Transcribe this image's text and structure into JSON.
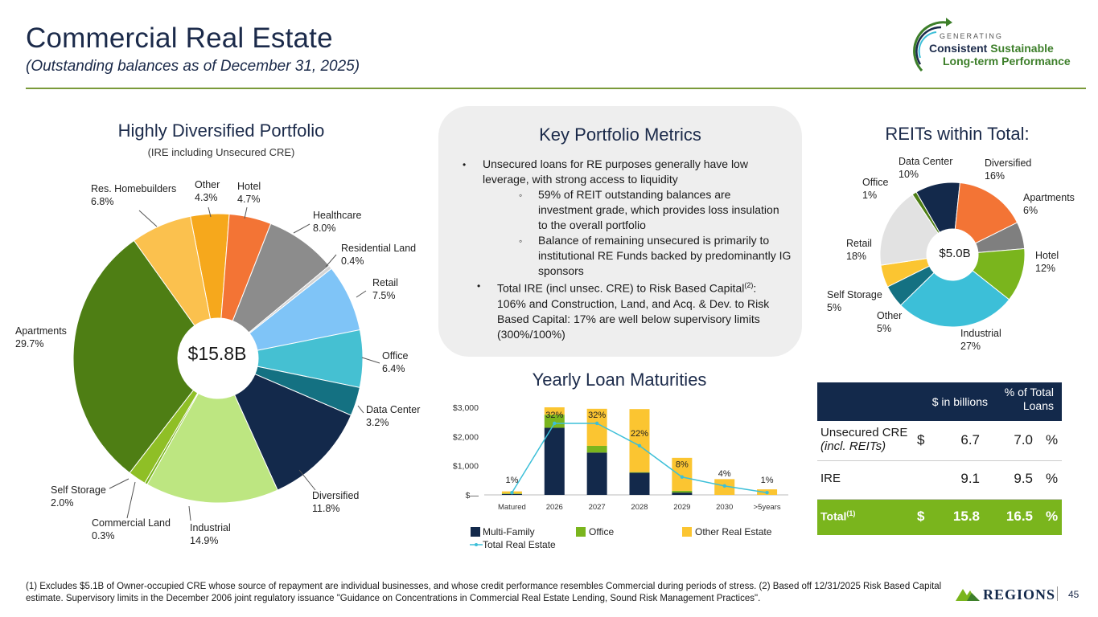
{
  "header": {
    "title": "Commercial Real Estate",
    "subtitle": "(Outstanding balances as of December 31, 2025)"
  },
  "logo": {
    "line1": "GENERATING",
    "line2a": "Consistent",
    "line2b": "Sustainable",
    "line3": "Long-term Performance"
  },
  "portfolio": {
    "title": "Highly Diversified Portfolio",
    "subtitle": "(IRE including Unsecured CRE)",
    "center": "$15.8B"
  },
  "reits": {
    "title": "REITs within Total:",
    "center": "$5.0B"
  },
  "metrics": {
    "title": "Key Portfolio Metrics",
    "b1": "Unsecured loans for RE purposes generally have low leverage, with strong access to liquidity",
    "b1a": "59% of REIT outstanding balances are investment grade, which provides loss insulation to the overall portfolio",
    "b1b": "Balance of remaining unsecured is primarily to institutional RE Funds backed by predominantly IG sponsors",
    "b2_pre": "Total IRE (incl unsec. CRE) to Risk Based Capital",
    "b2_sup": "(2)",
    "b2_post": ": 106% and Construction, Land, and Acq. & Dev. to Risk Based Capital: 17% are well below supervisory limits (300%/100%)"
  },
  "maturities": {
    "title": "Yearly Loan Maturities",
    "legend": {
      "mf": "Multi-Family",
      "office": "Office",
      "ore": "Other Real Estate",
      "total": "Total Real Estate"
    }
  },
  "table": {
    "col1": "$ in billions",
    "col2": "% of Total Loans",
    "rows": [
      {
        "name": "Unsecured CRE",
        "name2": "(incl. REITs)",
        "dollar": "$",
        "val": "6.7",
        "pct": "7.0",
        "pc": "%"
      },
      {
        "name": "IRE",
        "name2": "",
        "dollar": "",
        "val": "9.1",
        "pct": "9.5",
        "pc": "%"
      }
    ],
    "total": {
      "name": "Total",
      "sup": "(1)",
      "dollar": "$",
      "val": "15.8",
      "pct": "16.5",
      "pc": "%"
    }
  },
  "footnote": "(1) Excludes $5.1B of Owner-occupied CRE whose source of repayment are individual businesses, and whose credit performance resembles Commercial during periods of stress. (2) Based off 12/31/2025 Risk Based Capital estimate. Supervisory limits in the December 2006 joint regulatory issuance \"Guidance on Concentrations in Commercial Real Estate Lending, Sound Risk Management Practices\".",
  "brand": "REGIONS",
  "page_number": "45",
  "chart_data": [
    {
      "type": "pie",
      "title": "Highly Diversified Portfolio",
      "categories": [
        "Other",
        "Hotel",
        "Healthcare",
        "Residential Land",
        "Retail",
        "Office",
        "Data Center",
        "Diversified",
        "Industrial",
        "Commercial Land",
        "Self Storage",
        "Apartments",
        "Res. Homebuilders"
      ],
      "values": [
        4.3,
        4.7,
        8.0,
        0.4,
        7.5,
        6.4,
        3.2,
        11.8,
        14.9,
        0.3,
        2.0,
        29.7,
        6.8
      ],
      "labels": [
        "4.3%",
        "4.7%",
        "8.0%",
        "0.4%",
        "7.5%",
        "6.4%",
        "3.2%",
        "11.8%",
        "14.9%",
        "0.3%",
        "2.0%",
        "29.7%",
        "6.8%"
      ],
      "colors": [
        "#f6a81c",
        "#f37435",
        "#8c8c8c",
        "#d4d4d4",
        "#7fc4f7",
        "#45c0d2",
        "#147182",
        "#13294b",
        "#bde681",
        "#7ab51d",
        "#8fbf26",
        "#4e7e14",
        "#fbc14e"
      ]
    },
    {
      "type": "pie",
      "title": "REITs within Total:",
      "categories": [
        "Data Center",
        "Diversified",
        "Apartments",
        "Hotel",
        "Industrial",
        "Other",
        "Self Storage",
        "Retail",
        "Office"
      ],
      "values": [
        10,
        16,
        6,
        12,
        27,
        5,
        5,
        18,
        1
      ],
      "labels": [
        "10%",
        "16%",
        "6%",
        "12%",
        "27%",
        "5%",
        "5%",
        "18%",
        "1%"
      ],
      "colors": [
        "#13294b",
        "#f37435",
        "#7f7f7f",
        "#7ab51d",
        "#3cbfd8",
        "#147182",
        "#fbc531",
        "#e2e2e2",
        "#4e7e14"
      ]
    },
    {
      "type": "bar",
      "title": "Yearly Loan Maturities",
      "categories": [
        "Matured",
        "2026",
        "2027",
        "2028",
        "2029",
        "2030",
        ">5years"
      ],
      "series": [
        {
          "name": "Multi-Family",
          "values": [
            30,
            2300,
            1450,
            760,
            80,
            0,
            0
          ]
        },
        {
          "name": "Office",
          "values": [
            20,
            450,
            230,
            20,
            60,
            0,
            0
          ]
        },
        {
          "name": "Other Real Estate",
          "values": [
            70,
            250,
            1270,
            2160,
            1130,
            540,
            190
          ]
        }
      ],
      "line": {
        "name": "Total Real Estate",
        "labels": [
          "1%",
          "32%",
          "32%",
          "22%",
          "8%",
          "4%",
          "1%"
        ],
        "values": [
          1,
          32,
          32,
          22,
          8,
          4,
          1
        ]
      },
      "yticks": [
        "$—",
        "$1,000",
        "$2,000",
        "$3,000"
      ],
      "ylim": [
        0,
        3000
      ],
      "colors": {
        "mf": "#13294b",
        "office": "#7ab51d",
        "ore": "#fbc531",
        "line": "#3cbfd8"
      }
    }
  ]
}
